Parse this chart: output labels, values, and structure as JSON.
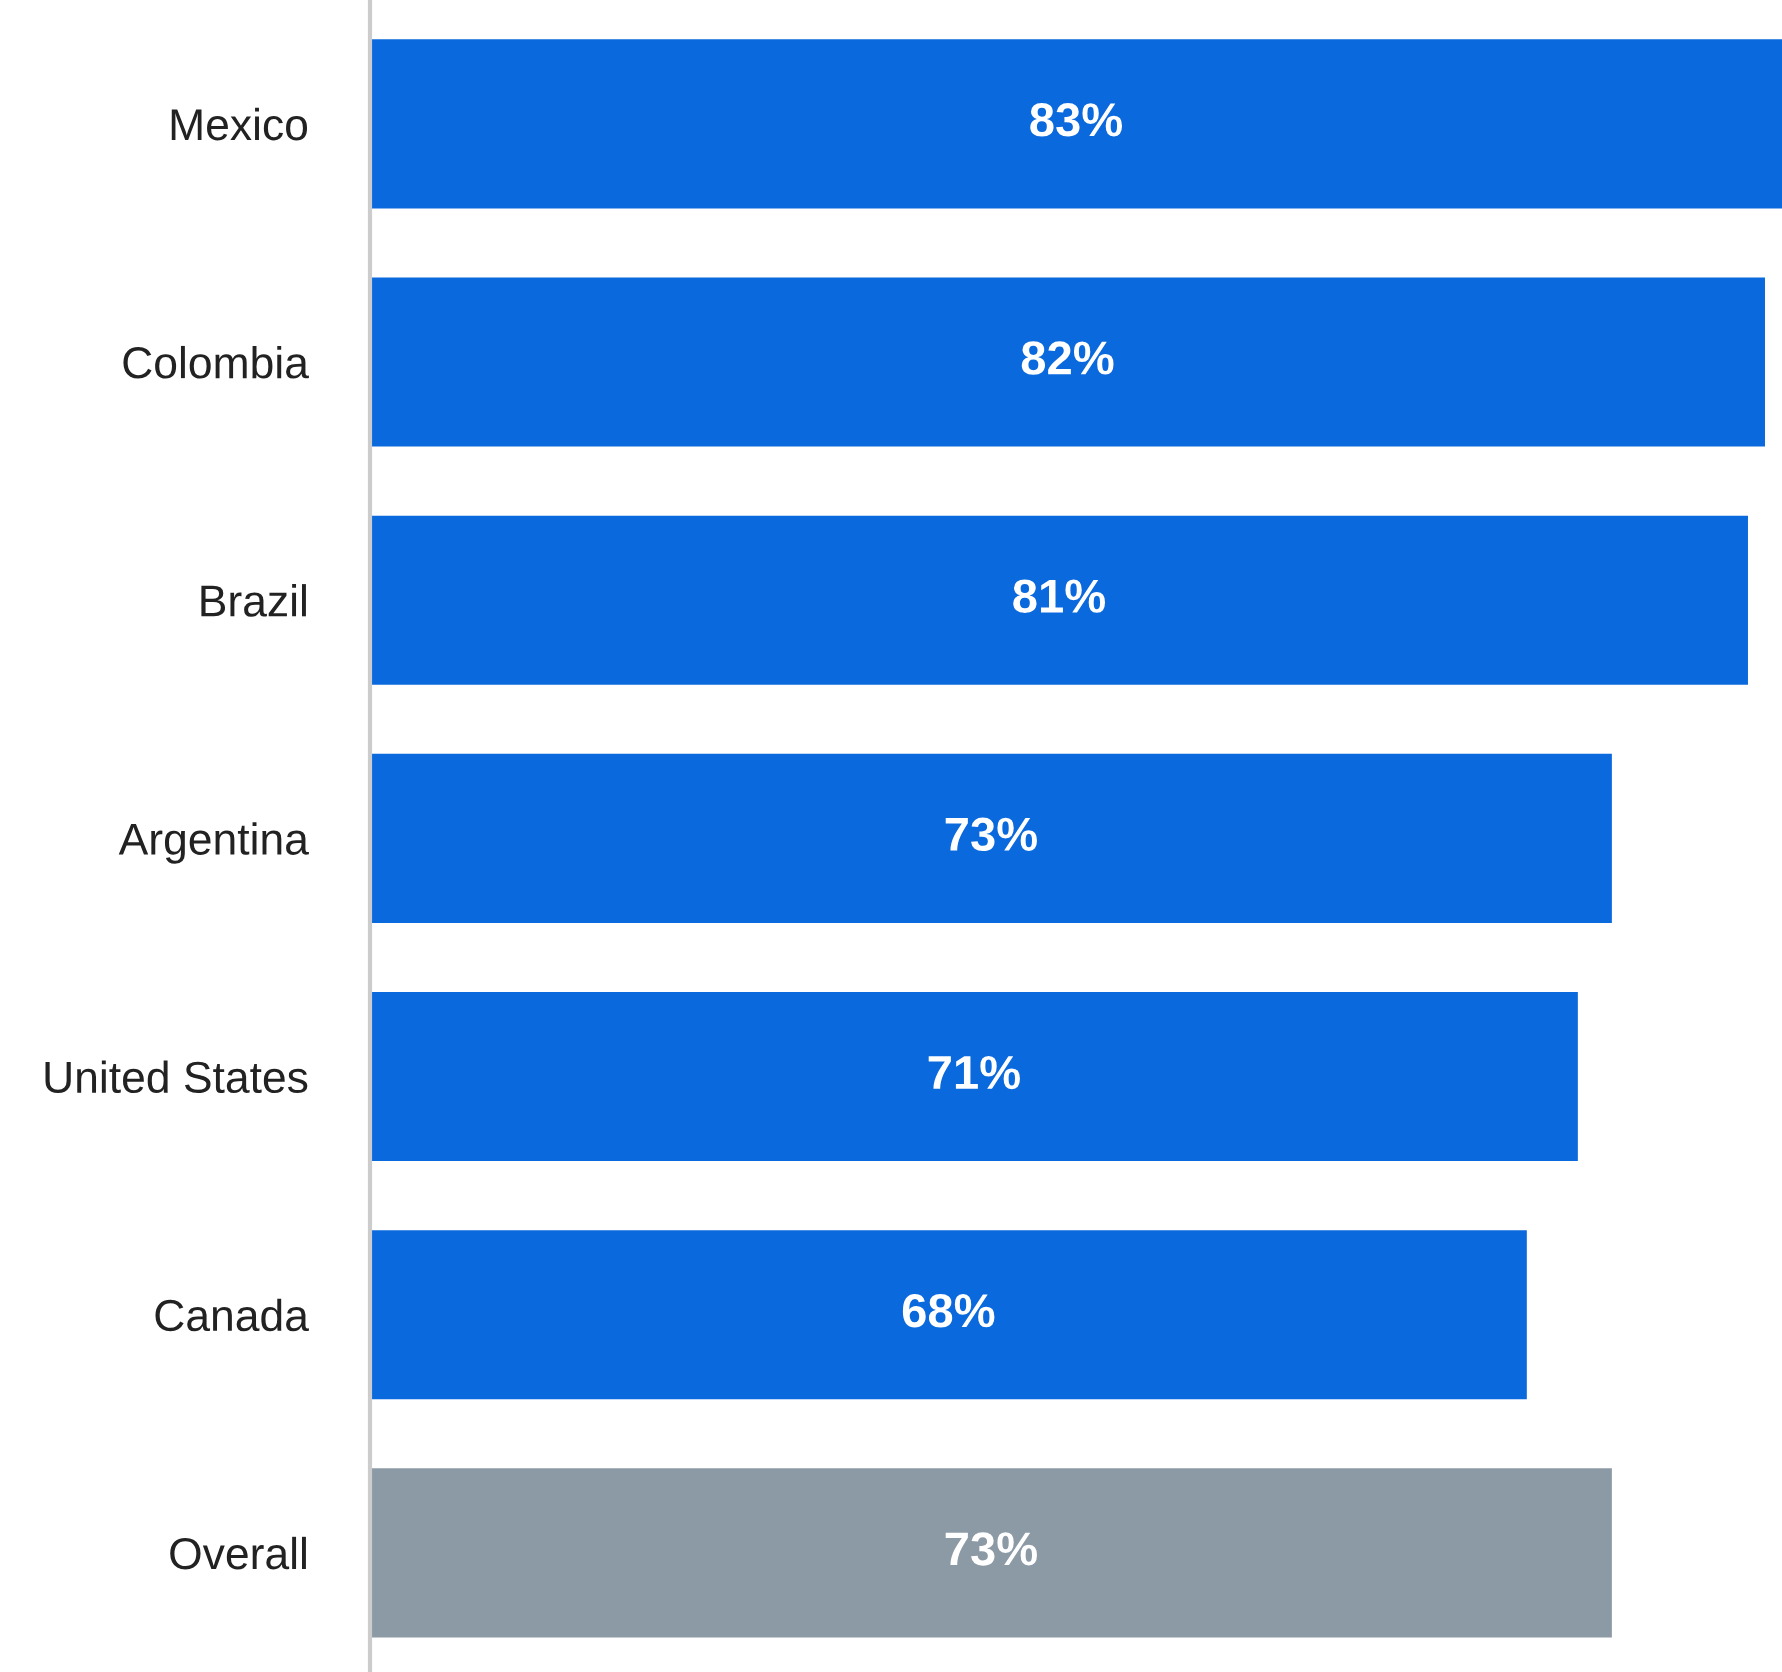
{
  "chart_data": {
    "type": "bar",
    "orientation": "horizontal",
    "categories": [
      "Mexico",
      "Colombia",
      "Brazil",
      "Argentina",
      "United States",
      "Canada",
      "Overall"
    ],
    "values": [
      83,
      82,
      81,
      73,
      71,
      68,
      73
    ],
    "value_labels": [
      "83%",
      "82%",
      "81%",
      "73%",
      "71%",
      "68%",
      "73%"
    ],
    "colors": [
      "#0a69dc",
      "#0a69dc",
      "#0a69dc",
      "#0a69dc",
      "#0a69dc",
      "#0a69dc",
      "#8c9aa6"
    ],
    "grid": false,
    "legend": false
  }
}
